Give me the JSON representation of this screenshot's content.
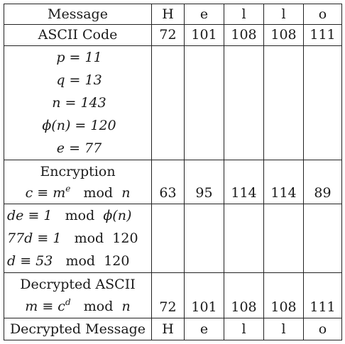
{
  "header": {
    "message_label": "Message",
    "letters": [
      "H",
      "e",
      "l",
      "l",
      "o"
    ]
  },
  "ascii_row": {
    "label": "ASCII Code",
    "values": [
      "72",
      "101",
      "108",
      "108",
      "111"
    ]
  },
  "params": {
    "lines": [
      "p = 11",
      "q = 13",
      "n = 143",
      "ϕ(n) = 120",
      "e = 77"
    ]
  },
  "encryption": {
    "title": "Encryption",
    "formula_lhs": "c ≡ m",
    "formula_sup": "e",
    "formula_mod": "mod",
    "formula_var": "n",
    "values": [
      "63",
      "95",
      "114",
      "114",
      "89"
    ]
  },
  "decryption_key": {
    "line1_lhs": "de ≡ 1",
    "line1_mod": "mod",
    "line1_rhs": "ϕ(n)",
    "line2_lhs": "77d ≡ 1",
    "line2_mod": "mod",
    "line2_rhs": "120",
    "line3_lhs": "d ≡ 53",
    "line3_mod": "mod",
    "line3_rhs": "120"
  },
  "decrypted_ascii": {
    "title": "Decrypted ASCII",
    "formula_lhs": "m ≡ c",
    "formula_sup": "d",
    "formula_mod": "mod",
    "formula_var": "n",
    "values": [
      "72",
      "101",
      "108",
      "108",
      "111"
    ]
  },
  "decrypted_message": {
    "label": "Decrypted Message",
    "letters": [
      "H",
      "e",
      "l",
      "l",
      "o"
    ]
  }
}
